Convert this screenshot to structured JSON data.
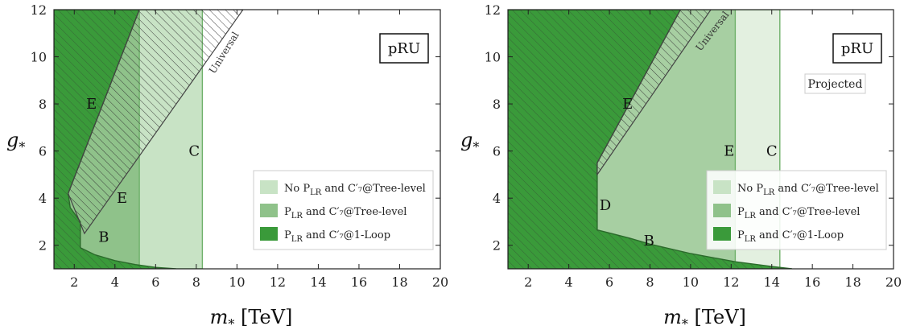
{
  "chart_data": [
    {
      "type": "area",
      "panel": "left",
      "xlabel": "m_* [TeV]",
      "ylabel": "g_*",
      "xlim": [
        1,
        20
      ],
      "ylim": [
        1,
        12
      ],
      "xticks": [
        2,
        4,
        6,
        8,
        10,
        12,
        14,
        16,
        18,
        20
      ],
      "yticks": [
        2,
        4,
        6,
        8,
        10,
        12
      ],
      "grid": false,
      "legend_position": "bottom-right",
      "box_label": "pRU",
      "subtitle_box": "",
      "universal_label": "Universal",
      "series": [
        {
          "name": "No P_LR and C7'@Tree-level",
          "color": "#c8e3c5",
          "boundary": [
            [
              1,
              12
            ],
            [
              8.3,
              12
            ],
            [
              8.3,
              1
            ],
            [
              1,
              1
            ]
          ]
        },
        {
          "name": "P_LR and C7'@Tree-level",
          "color": "#8fc28a",
          "boundary": [
            [
              1,
              12
            ],
            [
              5.2,
              12
            ],
            [
              5.2,
              1
            ],
            [
              1,
              1
            ]
          ]
        },
        {
          "name": "P_LR and C7'@1-Loop",
          "color": "#3a9a3a",
          "boundary": [
            [
              1,
              1
            ],
            [
              1,
              12
            ],
            [
              5.2,
              12
            ],
            [
              1.7,
              4.2
            ],
            [
              1.8,
              3.6
            ],
            [
              2.3,
              3.0
            ],
            [
              2.3,
              1.9
            ],
            [
              3,
              1.6
            ],
            [
              4,
              1.35
            ],
            [
              5,
              1.18
            ],
            [
              6,
              1.06
            ],
            [
              7,
              1.0
            ]
          ]
        }
      ],
      "hatched_regions": [
        {
          "name": "Universal",
          "boundary": [
            [
              2.5,
              2.5
            ],
            [
              1.7,
              4.2
            ],
            [
              5.2,
              12
            ],
            [
              10.3,
              12
            ],
            [
              2.5,
              2.5
            ]
          ]
        }
      ],
      "region_labels": [
        {
          "text": "E",
          "x": 2.85,
          "y": 8.0
        },
        {
          "text": "E",
          "x": 4.35,
          "y": 4.0
        },
        {
          "text": "B",
          "x": 3.45,
          "y": 2.35
        },
        {
          "text": "C",
          "x": 7.9,
          "y": 6.0
        }
      ],
      "legend": [
        {
          "text_main": "No P",
          "sub": "LR",
          "text_rest": " and C′₇@Tree-level",
          "color": "#c8e3c5"
        },
        {
          "text_main": "P",
          "sub": "LR",
          "text_rest": " and C′₇@Tree-level",
          "color": "#8fc28a"
        },
        {
          "text_main": "P",
          "sub": "LR",
          "text_rest": " and C′₇@1-Loop",
          "color": "#3a9a3a"
        }
      ]
    },
    {
      "type": "area",
      "panel": "right",
      "xlabel": "m_* [TeV]",
      "ylabel": "g_*",
      "xlim": [
        1,
        20
      ],
      "ylim": [
        1,
        12
      ],
      "xticks": [
        2,
        4,
        6,
        8,
        10,
        12,
        14,
        16,
        18,
        20
      ],
      "yticks": [
        2,
        4,
        6,
        8,
        10,
        12
      ],
      "grid": false,
      "legend_position": "bottom-right",
      "box_label": "pRU",
      "subtitle_box": "Projected",
      "universal_label": "Universal",
      "series": [
        {
          "name": "No P_LR and C7'@Tree-level",
          "color": "#e3f0e0",
          "boundary": [
            [
              1,
              12
            ],
            [
              14.4,
              12
            ],
            [
              14.4,
              1
            ],
            [
              1,
              1
            ]
          ]
        },
        {
          "name": "P_LR and C7'@Tree-level",
          "color": "#a7cfa2",
          "boundary": [
            [
              1,
              12
            ],
            [
              12.2,
              12
            ],
            [
              12.2,
              1
            ],
            [
              1,
              1
            ]
          ]
        },
        {
          "name": "P_LR and C7'@1-Loop",
          "color": "#3a9a3a",
          "boundary": [
            [
              1,
              1
            ],
            [
              1,
              12
            ],
            [
              9.5,
              12
            ],
            [
              5.4,
              5.5
            ],
            [
              5.4,
              2.65
            ],
            [
              7,
              2.3
            ],
            [
              8,
              2.05
            ],
            [
              10,
              1.65
            ],
            [
              12.2,
              1.3
            ],
            [
              14,
              1.1
            ],
            [
              15,
              1.0
            ]
          ]
        }
      ],
      "hatched_regions": [
        {
          "name": "Universal",
          "boundary": [
            [
              5.4,
              5.5
            ],
            [
              9.5,
              12
            ],
            [
              11.0,
              12
            ],
            [
              5.4,
              5.0
            ]
          ]
        }
      ],
      "region_labels": [
        {
          "text": "E",
          "x": 6.9,
          "y": 8.0
        },
        {
          "text": "E",
          "x": 11.9,
          "y": 6.0
        },
        {
          "text": "C",
          "x": 14.0,
          "y": 6.0
        },
        {
          "text": "D",
          "x": 5.8,
          "y": 3.7
        },
        {
          "text": "B",
          "x": 7.95,
          "y": 2.2
        }
      ],
      "legend": [
        {
          "text_main": "No P",
          "sub": "LR",
          "text_rest": " and C′₇@Tree-level",
          "color": "#c8e3c5"
        },
        {
          "text_main": "P",
          "sub": "LR",
          "text_rest": " and C′₇@Tree-level",
          "color": "#8fc28a"
        },
        {
          "text_main": "P",
          "sub": "LR",
          "text_rest": " and C′₇@1-Loop",
          "color": "#3a9a3a"
        }
      ]
    }
  ],
  "axis_titles": {
    "x_main": "m",
    "x_sub": "*",
    "x_unit": " [TeV]",
    "y_main": "g",
    "y_sub": "*"
  }
}
